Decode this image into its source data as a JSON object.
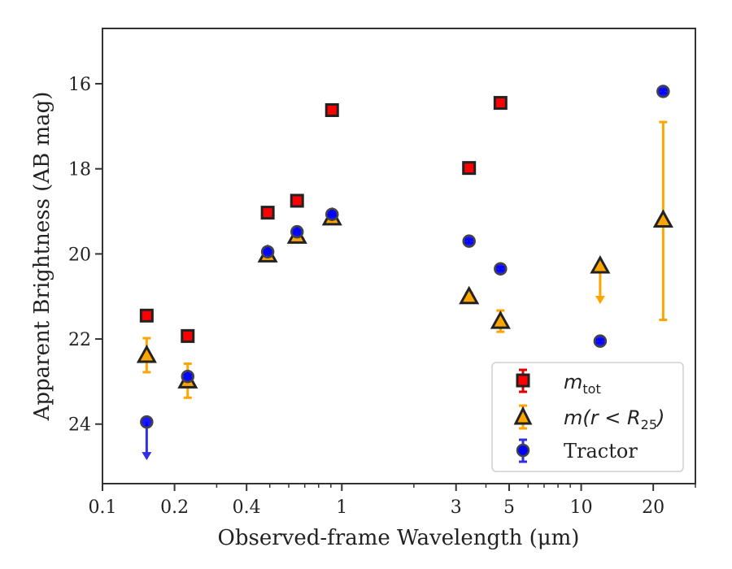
{
  "chart_data": {
    "type": "scatter",
    "xlabel": "Observed-frame Wavelength (μm)",
    "ylabel": "Apparent Brightness (AB mag)",
    "xscale": "log",
    "xlim": [
      0.1,
      30
    ],
    "ylim": [
      25.4,
      14.7
    ],
    "y_inverted": true,
    "xticks": [
      {
        "value": 0.1,
        "label": "0.1"
      },
      {
        "value": 0.2,
        "label": "0.2"
      },
      {
        "value": 0.4,
        "label": "0.4"
      },
      {
        "value": 1,
        "label": "1"
      },
      {
        "value": 3,
        "label": "3"
      },
      {
        "value": 5,
        "label": "5"
      },
      {
        "value": 10,
        "label": "10"
      },
      {
        "value": 20,
        "label": "20"
      }
    ],
    "yticks": [
      {
        "value": 16,
        "label": "16"
      },
      {
        "value": 18,
        "label": "18"
      },
      {
        "value": 20,
        "label": "20"
      },
      {
        "value": 22,
        "label": "22"
      },
      {
        "value": 24,
        "label": "24"
      }
    ],
    "grid": false,
    "legend_position": "lower-right",
    "series": [
      {
        "name": "m_tot",
        "marker": "square",
        "color": "#ff0000",
        "error_color": "#e00000",
        "points": [
          {
            "x": 0.153,
            "y": 21.45,
            "err": 0.08
          },
          {
            "x": 0.227,
            "y": 21.93,
            "err": 0.08
          },
          {
            "x": 0.49,
            "y": 19.03,
            "err": 0.05
          },
          {
            "x": 0.65,
            "y": 18.75,
            "err": 0.05
          },
          {
            "x": 0.91,
            "y": 16.62,
            "err": 0.05
          },
          {
            "x": 3.4,
            "y": 17.98,
            "err": 0.05
          },
          {
            "x": 4.6,
            "y": 16.45,
            "err": 0.05
          }
        ]
      },
      {
        "name": "m(r < R25)",
        "marker": "triangle",
        "color": "#ffa500",
        "error_color": "#ffa500",
        "points": [
          {
            "x": 0.153,
            "y": 22.38,
            "err": 0.4
          },
          {
            "x": 0.227,
            "y": 22.98,
            "err": 0.4
          },
          {
            "x": 0.49,
            "y": 20.02,
            "err": 0.05
          },
          {
            "x": 0.65,
            "y": 19.58,
            "err": 0.05
          },
          {
            "x": 0.91,
            "y": 19.15,
            "err": 0.05
          },
          {
            "x": 3.4,
            "y": 21.0,
            "err": 0.08
          },
          {
            "x": 4.6,
            "y": 21.58,
            "err": 0.25
          },
          {
            "x": 12,
            "y": 20.28,
            "upper_limit": true
          },
          {
            "x": 22,
            "y": 19.2,
            "err_low": 2.3,
            "err_high": 2.35
          }
        ]
      },
      {
        "name": "Tractor",
        "marker": "circle",
        "color": "#0000ff",
        "error_color": "#3030e0",
        "points": [
          {
            "x": 0.153,
            "y": 23.95,
            "upper_limit": true
          },
          {
            "x": 0.227,
            "y": 22.88,
            "err": 0.05
          },
          {
            "x": 0.49,
            "y": 19.95,
            "err": 0.04
          },
          {
            "x": 0.65,
            "y": 19.48,
            "err": 0.04
          },
          {
            "x": 0.91,
            "y": 19.07,
            "err": 0.04
          },
          {
            "x": 3.4,
            "y": 19.7,
            "err": 0.04
          },
          {
            "x": 4.6,
            "y": 20.35,
            "err": 0.04
          },
          {
            "x": 12,
            "y": 22.05,
            "err": 0.04
          },
          {
            "x": 22,
            "y": 16.18,
            "err": 0.04
          }
        ]
      }
    ]
  },
  "legend": {
    "items": [
      {
        "main": "m",
        "sub": "tot",
        "suffix": ""
      },
      {
        "main": "m(r < R",
        "sub": "25",
        "suffix": ")"
      },
      {
        "main": "Tractor",
        "sub": "",
        "suffix": ""
      }
    ]
  }
}
